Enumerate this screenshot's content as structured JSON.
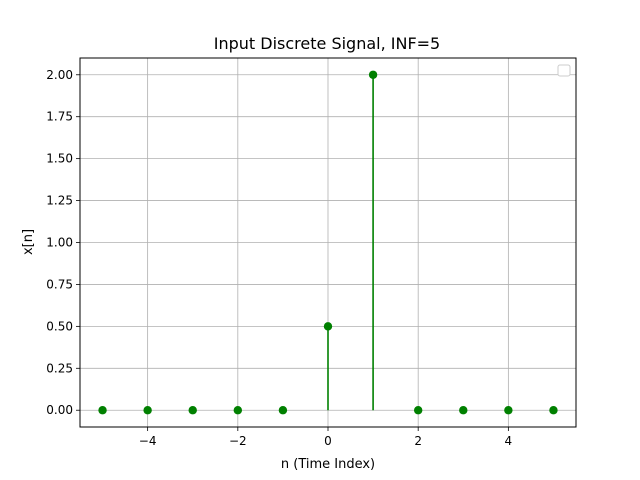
{
  "chart_data": {
    "type": "stem",
    "title": "Input Discrete Signal, INF=5",
    "xlabel": "n (Time Index)",
    "ylabel": "x[n]",
    "xlim": [
      -5.5,
      5.5
    ],
    "ylim": [
      -0.1,
      2.1
    ],
    "x": [
      -5,
      -4,
      -3,
      -2,
      -1,
      0,
      1,
      2,
      3,
      4,
      5
    ],
    "values": [
      0,
      0,
      0,
      0,
      0,
      0.5,
      2,
      0,
      0,
      0,
      0
    ],
    "xticks": [
      -4,
      -2,
      0,
      2,
      4
    ],
    "xtick_labels": [
      "−4",
      "−2",
      "0",
      "2",
      "4"
    ],
    "yticks": [
      0,
      0.25,
      0.5,
      0.75,
      1.0,
      1.25,
      1.5,
      1.75,
      2.0
    ],
    "ytick_labels": [
      "0.00",
      "0.25",
      "0.50",
      "0.75",
      "1.00",
      "1.25",
      "1.50",
      "1.75",
      "2.00"
    ],
    "grid": true,
    "legend": "top-right (empty)",
    "colors": {
      "stem": "#008000",
      "grid": "#b0b0b0",
      "axes": "#000000"
    }
  }
}
